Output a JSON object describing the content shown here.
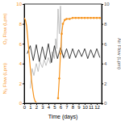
{
  "chart_data": {
    "type": "line",
    "xlabel": "Time (days)",
    "ylabels": [
      "N₂ Flow (Lpm)",
      "O₂ Flow (Lpm)"
    ],
    "y2label": "Air Flow (Lpm)",
    "xlim": [
      0,
      12.8
    ],
    "xticks": [
      0,
      1,
      2,
      3,
      4,
      5,
      6,
      7,
      8,
      9,
      10,
      11,
      12
    ],
    "ylim": [
      0,
      10
    ],
    "yticks": [
      0,
      2,
      4,
      6,
      8,
      10
    ],
    "y2lim": [
      0,
      10
    ],
    "y2ticks": [
      0,
      2,
      4,
      6,
      8,
      10
    ],
    "series": [
      {
        "color": "#b3b3b3",
        "axis": "y2",
        "line_style": "solid",
        "x": [
          1,
          1.3,
          1.6,
          2,
          2.3,
          2.6,
          3,
          3.3,
          3.6,
          4,
          4.3,
          4.6,
          5,
          5.2,
          5.4,
          5.6,
          5.8,
          6,
          6.2,
          6.5,
          7
        ],
        "values": [
          1.5,
          3.5,
          2.8,
          4,
          3.2,
          4.2,
          3.6,
          4.4,
          3.8,
          4.6,
          4,
          5.2,
          4.5,
          6.5,
          5.5,
          9.5,
          7,
          9.8,
          5.5,
          4.5,
          4.8
        ]
      },
      {
        "color": "#111111",
        "axis": "y2",
        "line_style": "solid",
        "x": [
          0.5,
          1,
          1.5,
          2,
          2.5,
          3,
          3.5,
          4,
          4.5,
          5,
          5.5,
          6,
          6.5,
          7,
          7.5,
          8,
          8.5,
          9,
          9.5,
          10,
          10.5,
          11,
          11.5,
          12,
          12.5
        ],
        "values": [
          5,
          5.8,
          4.3,
          5.9,
          4.2,
          5.7,
          4.4,
          6,
          4.1,
          5.8,
          4.5,
          5.6,
          4.6,
          5.5,
          4.5,
          5.5,
          4.6,
          5.4,
          4.7,
          5.5,
          4.5,
          5.4,
          4.6,
          5.5,
          4.6
        ]
      },
      {
        "color": "#f7941d",
        "axis": "y",
        "line_style": "solid",
        "x": [
          0,
          0.2,
          0.4,
          0.6,
          0.8,
          1,
          1.2,
          1.4,
          1.6,
          1.8,
          2
        ],
        "values": [
          8.6,
          8.4,
          7.8,
          6.5,
          5,
          3.6,
          2.4,
          1.4,
          0.6,
          0.2,
          0.1
        ]
      },
      {
        "color": "#f7941d",
        "axis": "y",
        "line_style": "solid",
        "marker": "circle",
        "x": [
          5.6,
          5.8,
          6,
          6.2,
          6.4,
          6.7,
          7,
          7.5,
          8,
          8.5,
          9,
          9.5,
          10,
          10.5,
          11,
          11.5,
          12,
          12.5
        ],
        "values": [
          0.5,
          2.5,
          5,
          7,
          8,
          8.4,
          8.5,
          8.5,
          8.6,
          8.6,
          8.6,
          8.6,
          8.6,
          8.6,
          8.6,
          8.6,
          8.6,
          8.6
        ]
      }
    ]
  }
}
